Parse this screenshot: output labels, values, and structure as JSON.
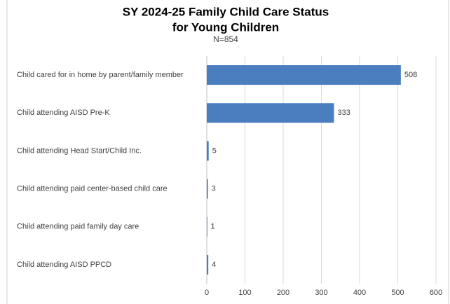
{
  "chart_data": {
    "type": "bar",
    "orientation": "horizontal",
    "title": [
      "SY 2024-25 Family Child Care Status",
      "for Young Children"
    ],
    "subtitle": "N=854",
    "categories": [
      "Child cared for in home by parent/family member",
      "Child attending AISD Pre-K",
      "Child attending Head Start/Child Inc.",
      "Child attending paid center-based child care",
      "Child attending paid family day care",
      "Child attending AISD PPCD"
    ],
    "values": [
      508,
      333,
      5,
      3,
      1,
      4
    ],
    "color": "#4a7ebf",
    "xlim": [
      0,
      600
    ],
    "xticks": [
      0,
      100,
      200,
      300,
      400,
      500,
      600
    ],
    "grid": true
  }
}
